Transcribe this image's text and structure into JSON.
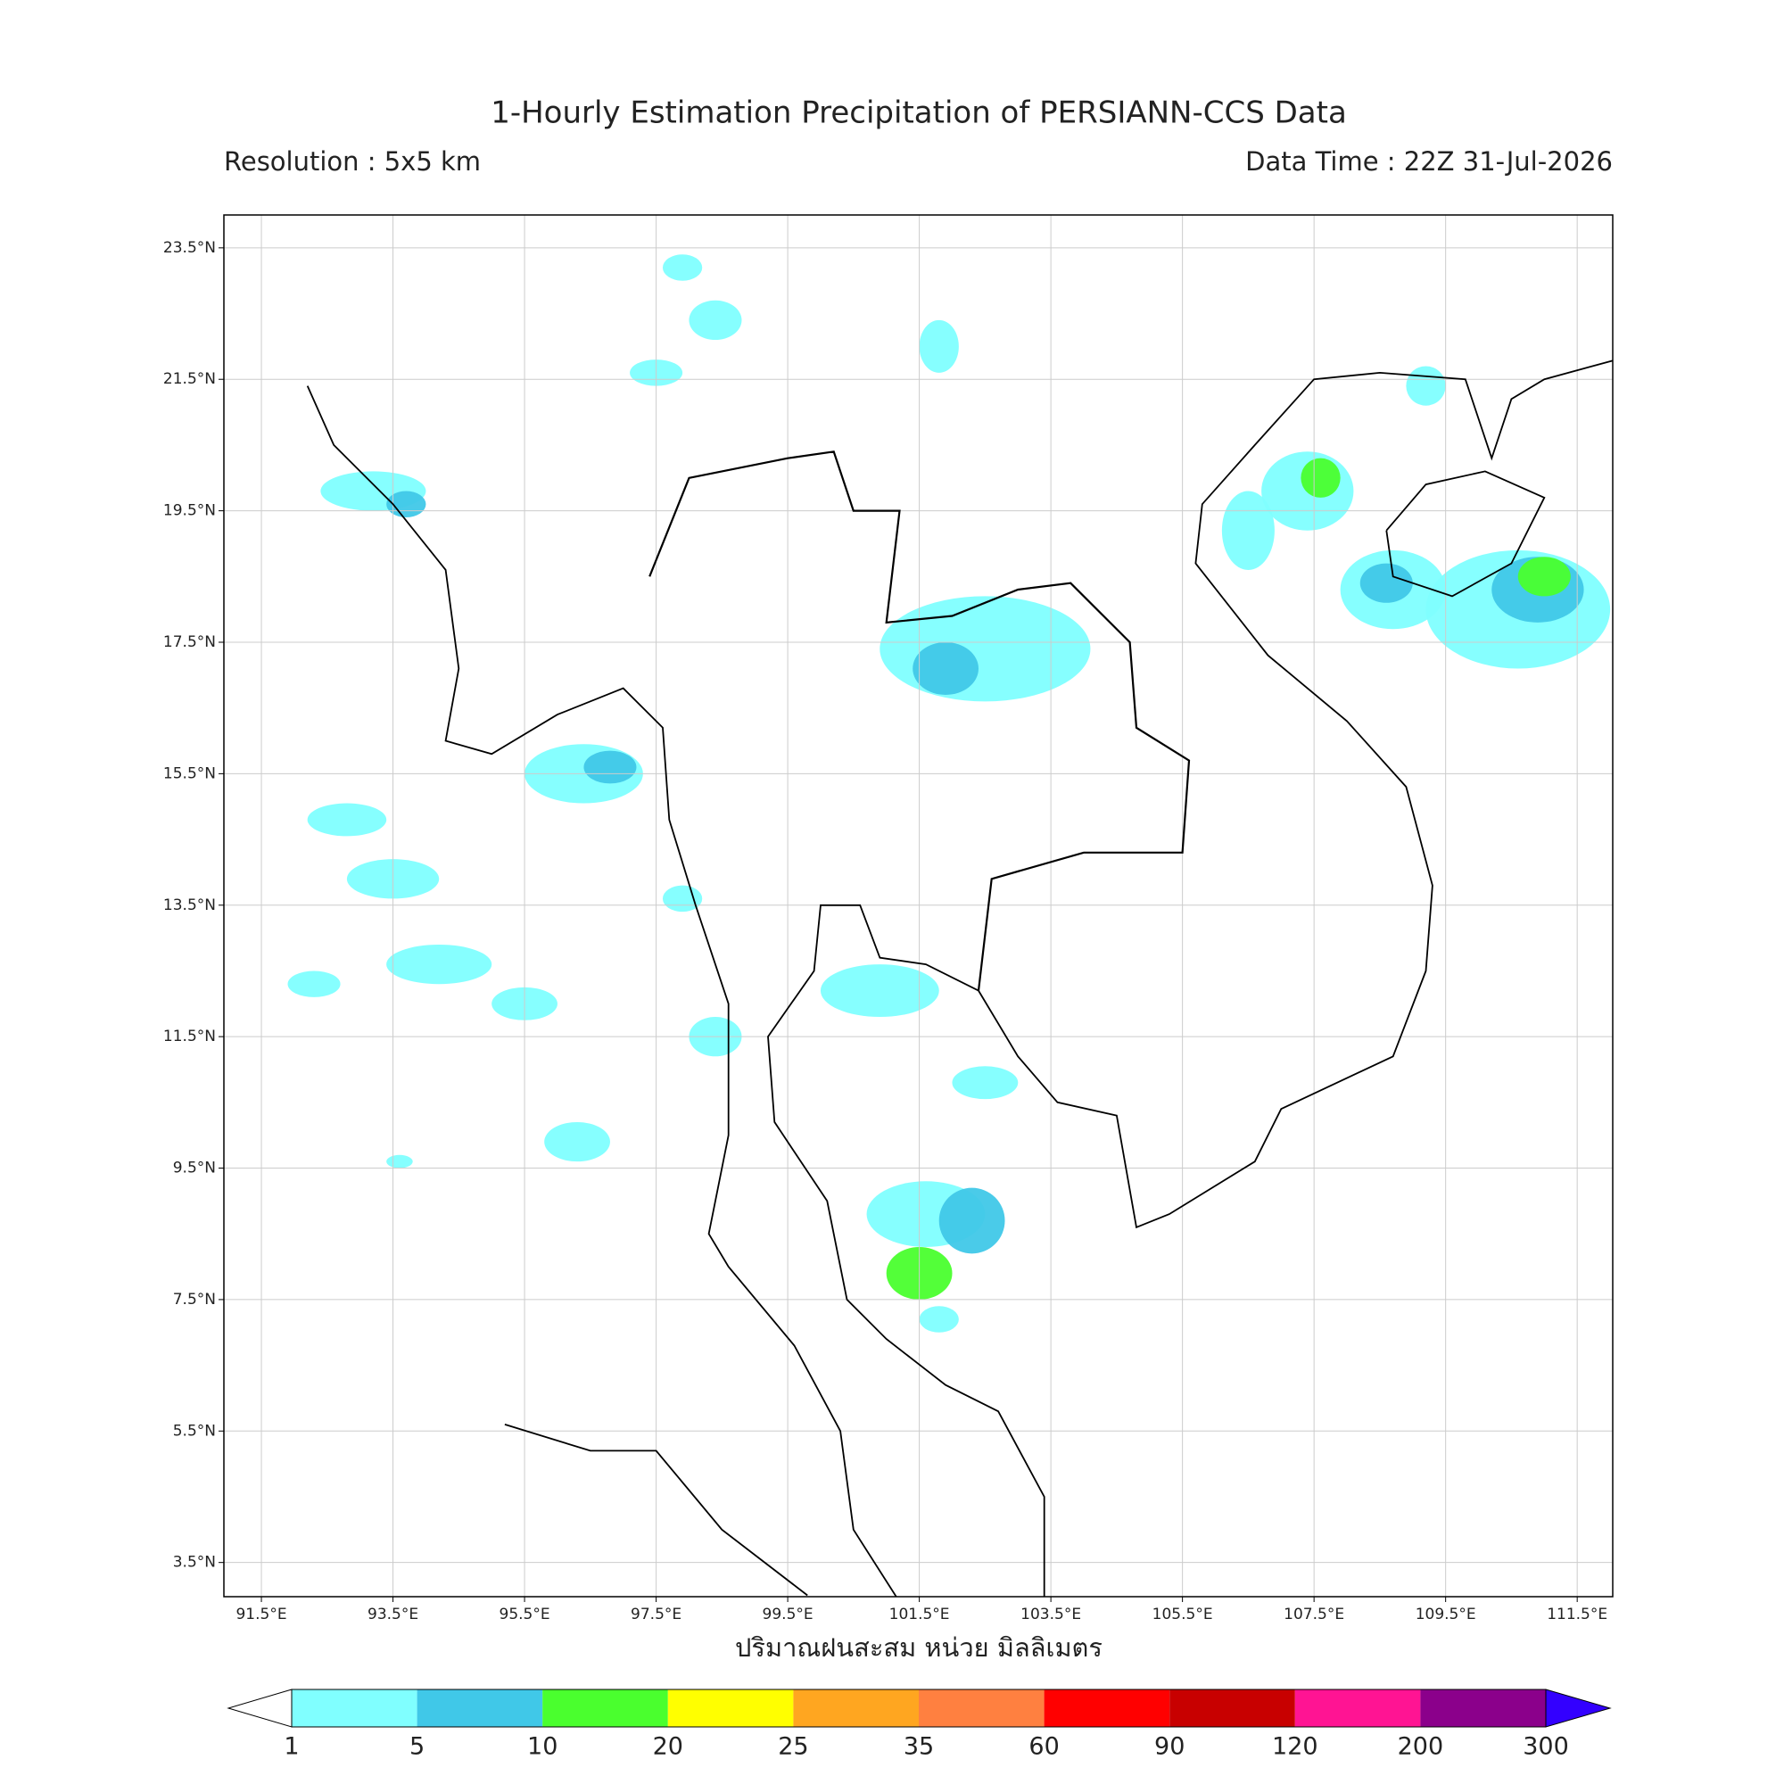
{
  "chart_data": {
    "type": "map",
    "title": "1-Hourly Estimation Precipitation of PERSIANN-CCS Data",
    "subtitle_left": "Resolution : 5x5 km",
    "subtitle_right": "Data Time : 22Z 31-Jul-2026",
    "colorbar_label": "ปริมาณฝนสะสม หน่วย มิลลิเมตร",
    "xlim": [
      90.93,
      112.04
    ],
    "ylim": [
      2.98,
      24.0
    ],
    "xticks": [
      {
        "value": 91.5,
        "label": "91.5°E"
      },
      {
        "value": 93.5,
        "label": "93.5°E"
      },
      {
        "value": 95.5,
        "label": "95.5°E"
      },
      {
        "value": 97.5,
        "label": "97.5°E"
      },
      {
        "value": 99.5,
        "label": "99.5°E"
      },
      {
        "value": 101.5,
        "label": "101.5°E"
      },
      {
        "value": 103.5,
        "label": "103.5°E"
      },
      {
        "value": 105.5,
        "label": "105.5°E"
      },
      {
        "value": 107.5,
        "label": "107.5°E"
      },
      {
        "value": 109.5,
        "label": "109.5°E"
      },
      {
        "value": 111.5,
        "label": "111.5°E"
      }
    ],
    "yticks": [
      {
        "value": 3.5,
        "label": "3.5°N"
      },
      {
        "value": 5.5,
        "label": "5.5°N"
      },
      {
        "value": 7.5,
        "label": "7.5°N"
      },
      {
        "value": 9.5,
        "label": "9.5°N"
      },
      {
        "value": 11.5,
        "label": "11.5°N"
      },
      {
        "value": 13.5,
        "label": "13.5°N"
      },
      {
        "value": 15.5,
        "label": "15.5°N"
      },
      {
        "value": 17.5,
        "label": "17.5°N"
      },
      {
        "value": 19.5,
        "label": "19.5°N"
      },
      {
        "value": 21.5,
        "label": "21.5°N"
      },
      {
        "value": 23.5,
        "label": "23.5°N"
      }
    ],
    "grid": true,
    "colorbar": {
      "levels": [
        1,
        5,
        10,
        20,
        25,
        35,
        60,
        90,
        120,
        200,
        300
      ],
      "colors": [
        "#80ffff",
        "#40c8e8",
        "#4aff2e",
        "#ffff00",
        "#ffa620",
        "#ff8040",
        "#ff0000",
        "#c80000",
        "#ff1493",
        "#8b008b"
      ],
      "under_color": "#ffffff",
      "over_color": "#3300ff"
    }
  }
}
